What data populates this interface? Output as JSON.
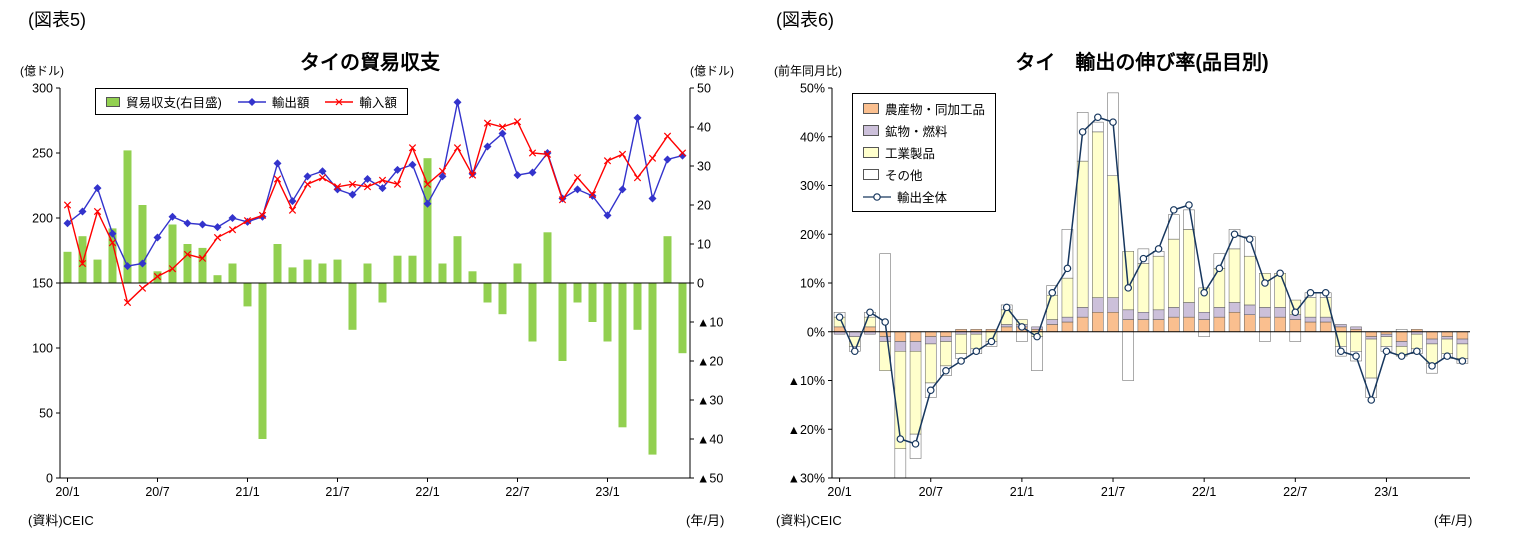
{
  "left_panel": {
    "figure_label": "(図表5)",
    "title": "タイの貿易収支",
    "left_axis_unit": "(億ドル)",
    "right_axis_unit": "(億ドル)",
    "x_axis_unit": "(年/月)",
    "source": "(資料)CEIC",
    "legend": [
      {
        "label": "貿易収支(右目盛)",
        "type": "bar",
        "color": "#92D050",
        "icon": "trade-balance-swatch-icon"
      },
      {
        "label": "輸出額",
        "type": "line-diamond",
        "color": "#3333CC",
        "icon": "exports-line-icon"
      },
      {
        "label": "輸入額",
        "type": "line-x",
        "color": "#FF0000",
        "icon": "imports-line-icon"
      }
    ]
  },
  "right_panel": {
    "figure_label": "(図表6)",
    "title": "タイ　輸出の伸び率(品目別)",
    "y_axis_unit": "(前年同月比)",
    "x_axis_unit": "(年/月)",
    "source": "(資料)CEIC",
    "legend": [
      {
        "label": "農産物・同加工品",
        "type": "swatch",
        "color": "#FABF8F",
        "icon": "agri-swatch-icon"
      },
      {
        "label": "鉱物・燃料",
        "type": "swatch",
        "color": "#CCC0DA",
        "icon": "minerals-swatch-icon"
      },
      {
        "label": "工業製品",
        "type": "swatch",
        "color": "#FFFFCC",
        "icon": "industry-swatch-icon"
      },
      {
        "label": "その他",
        "type": "swatch",
        "color": "#FFFFFF",
        "icon": "other-swatch-icon"
      },
      {
        "label": "輸出全体",
        "type": "line-circle",
        "color": "#17375E",
        "icon": "total-exports-line-icon"
      }
    ]
  },
  "chart_data": [
    {
      "type": "bar",
      "subtype": "bar+line combo, dual axis",
      "title": "タイの貿易収支",
      "n_months": 42,
      "x": [
        "20/1",
        "20/2",
        "20/3",
        "20/4",
        "20/5",
        "20/6",
        "20/7",
        "20/8",
        "20/9",
        "20/10",
        "20/11",
        "20/12",
        "21/1",
        "21/2",
        "21/3",
        "21/4",
        "21/5",
        "21/6",
        "21/7",
        "21/8",
        "21/9",
        "21/10",
        "21/11",
        "21/12",
        "22/1",
        "22/2",
        "22/3",
        "22/4",
        "22/5",
        "22/6",
        "22/7",
        "22/8",
        "22/9",
        "22/10",
        "22/11",
        "22/12",
        "23/1",
        "23/2",
        "23/3",
        "23/4",
        "23/5",
        "23/6"
      ],
      "x_ticks": [
        "20/1",
        "20/7",
        "21/1",
        "21/7",
        "22/1",
        "22/7",
        "23/1"
      ],
      "x_tick_indices": [
        0,
        6,
        12,
        18,
        24,
        30,
        36
      ],
      "y_left": {
        "min": 0,
        "max": 300,
        "ticks": [
          "300",
          "250",
          "200",
          "150",
          "100",
          "50",
          "0"
        ]
      },
      "y_right": {
        "min": -50,
        "max": 50,
        "ticks": [
          "50",
          "40",
          "30",
          "20",
          "10",
          "0",
          "▲10",
          "▲20",
          "▲30",
          "▲40",
          "▲50"
        ]
      },
      "series": [
        {
          "id": "trade-balance",
          "name": "貿易収支(右目盛)",
          "type": "bar",
          "axis": "right",
          "color": "#92D050",
          "values": [
            8,
            12,
            6,
            14,
            34,
            20,
            3,
            15,
            10,
            9,
            2,
            5,
            -6,
            -40,
            10,
            4,
            6,
            5,
            6,
            -12,
            5,
            -5,
            7,
            7,
            32,
            5,
            12,
            3,
            -5,
            -8,
            5,
            -15,
            13,
            -20,
            -5,
            -10,
            -15,
            -37,
            -12,
            -44,
            12,
            -18
          ]
        },
        {
          "id": "exports",
          "name": "輸出額",
          "type": "line",
          "marker": "diamond",
          "axis": "left",
          "color": "#3333CC",
          "values": [
            196,
            205,
            223,
            188,
            163,
            165,
            185,
            201,
            196,
            195,
            193,
            200,
            197,
            201,
            242,
            213,
            232,
            236,
            222,
            218,
            230,
            223,
            237,
            241,
            211,
            232,
            289,
            234,
            255,
            265,
            233,
            235,
            250,
            215,
            222,
            217,
            202,
            222,
            277,
            215,
            245,
            248
          ]
        },
        {
          "id": "imports",
          "name": "輸入額",
          "type": "line",
          "marker": "x",
          "axis": "left",
          "color": "#FF0000",
          "values": [
            210,
            165,
            205,
            181,
            135,
            146,
            155,
            161,
            172,
            169,
            185,
            191,
            198,
            202,
            230,
            206,
            226,
            231,
            224,
            226,
            224,
            229,
            226,
            254,
            226,
            236,
            254,
            233,
            273,
            270,
            274,
            250,
            249,
            214,
            231,
            218,
            244,
            249,
            231,
            246,
            263,
            250
          ]
        }
      ]
    },
    {
      "type": "bar",
      "subtype": "stacked bar + line",
      "title": "タイ　輸出の伸び率(品目別)",
      "n_months": 42,
      "x": [
        "20/1",
        "20/2",
        "20/3",
        "20/4",
        "20/5",
        "20/6",
        "20/7",
        "20/8",
        "20/9",
        "20/10",
        "20/11",
        "20/12",
        "21/1",
        "21/2",
        "21/3",
        "21/4",
        "21/5",
        "21/6",
        "21/7",
        "21/8",
        "21/9",
        "21/10",
        "21/11",
        "21/12",
        "22/1",
        "22/2",
        "22/3",
        "22/4",
        "22/5",
        "22/6",
        "22/7",
        "22/8",
        "22/9",
        "22/10",
        "22/11",
        "22/12",
        "23/1",
        "23/2",
        "23/3",
        "23/4",
        "23/5",
        "23/6"
      ],
      "x_ticks": [
        "20/1",
        "20/7",
        "21/1",
        "21/7",
        "22/1",
        "22/7",
        "23/1"
      ],
      "x_tick_indices": [
        0,
        6,
        12,
        18,
        24,
        30,
        36
      ],
      "y": {
        "min": -30,
        "max": 50,
        "ticks": [
          "50%",
          "40%",
          "30%",
          "20%",
          "10%",
          "0%",
          "▲10%",
          "▲20%",
          "▲30%"
        ]
      },
      "series": [
        {
          "id": "agri",
          "name": "農産物・同加工品",
          "type": "stacked-bar",
          "color": "#FABF8F",
          "values": [
            1,
            0,
            1,
            -1,
            -2,
            -2,
            -1,
            -1,
            0.5,
            0.5,
            0.5,
            1,
            1,
            0.5,
            1.5,
            2,
            3,
            4,
            4,
            2.5,
            2.5,
            2.5,
            3,
            3,
            2.5,
            3,
            4,
            3.5,
            3,
            3,
            2.5,
            2,
            2,
            1,
            0.5,
            -1,
            -0.5,
            -2,
            0.5,
            -1.5,
            -1,
            -1.5
          ]
        },
        {
          "id": "minerals",
          "name": "鉱物・燃料",
          "type": "stacked-bar",
          "color": "#CCC0DA",
          "values": [
            -0.5,
            -1,
            -0.5,
            -1,
            -2,
            -2,
            -1.5,
            -1,
            -0.5,
            -0.5,
            0,
            0.5,
            0.5,
            0.5,
            1,
            1,
            2,
            3,
            3,
            2,
            1.5,
            2,
            2,
            3,
            1.5,
            2,
            2,
            2,
            2,
            2,
            1,
            1,
            1,
            0.5,
            0.5,
            -0.5,
            -0.5,
            -1,
            -0.5,
            -1,
            -0.5,
            -1
          ]
        },
        {
          "id": "industry",
          "name": "工業製品",
          "type": "stacked-bar",
          "color": "#FFFFCC",
          "values": [
            2,
            -2,
            2,
            -6,
            -20,
            -17,
            -8,
            -5,
            -4,
            -3,
            -2,
            3,
            1,
            -1,
            5,
            8,
            30,
            34,
            25,
            12,
            10,
            11,
            14,
            15,
            5,
            8,
            11,
            10,
            7,
            7,
            3,
            4,
            4,
            -3,
            -4,
            -8,
            -2,
            -2,
            -3,
            -4,
            -3,
            -3
          ]
        },
        {
          "id": "other",
          "name": "その他",
          "type": "stacked-bar",
          "color": "#FFFFFF",
          "values": [
            1,
            -1,
            1,
            16,
            -6,
            -5,
            -3,
            -2,
            -1,
            -1,
            -1,
            1,
            -2,
            -7,
            2,
            10,
            10,
            2,
            17,
            -10,
            3,
            1,
            5,
            4,
            -1,
            3,
            4,
            4,
            -2,
            0,
            -2,
            1,
            1,
            -2,
            -2,
            -4,
            -1,
            0.5,
            -1,
            -2,
            -1,
            -1
          ]
        },
        {
          "id": "total-exports",
          "name": "輸出全体",
          "type": "line",
          "marker": "circle",
          "color": "#17375E",
          "values": [
            3,
            -4,
            4,
            2,
            -22,
            -23,
            -12,
            -8,
            -6,
            -4,
            -2,
            5,
            1,
            -1,
            8,
            13,
            41,
            44,
            43,
            9,
            15,
            17,
            25,
            26,
            8,
            13,
            20,
            19,
            10,
            12,
            4,
            8,
            8,
            -4,
            -5,
            -14,
            -4,
            -5,
            -4,
            -7,
            -5,
            -6
          ]
        }
      ]
    }
  ]
}
